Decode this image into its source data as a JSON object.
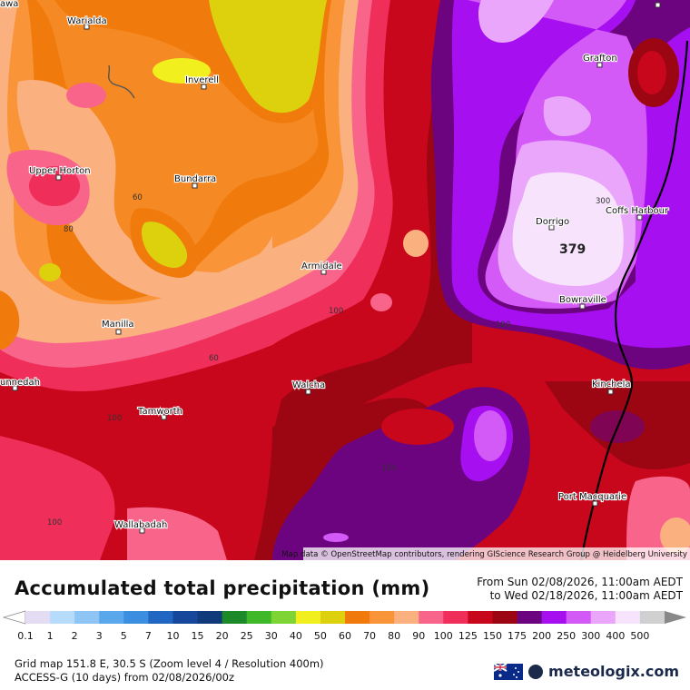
{
  "map": {
    "attribution": "Map data © OpenStreetMap contributors, rendering GIScience Research Group @ Heidelberg University",
    "towns": [
      {
        "name": "Warialda"
      },
      {
        "name": "Inverell"
      },
      {
        "name": "Upper Horton"
      },
      {
        "name": "Bundarra"
      },
      {
        "name": "Manilla"
      },
      {
        "name": "Armidale"
      },
      {
        "name": "Grafton"
      },
      {
        "name": "Coffs Harbour"
      },
      {
        "name": "Dorrigo"
      },
      {
        "name": "Bowraville"
      },
      {
        "name": "Kinchela"
      },
      {
        "name": "Walcha"
      },
      {
        "name": "Tamworth"
      },
      {
        "name": "unnedah"
      },
      {
        "name": "Wallabadah"
      },
      {
        "name": "Port Macquarie"
      },
      {
        "name": "awa"
      }
    ],
    "contour_labels": [
      "60",
      "80",
      "60",
      "100",
      "100",
      "150",
      "300",
      "100",
      "100"
    ],
    "max_value_label": "379"
  },
  "footer": {
    "title": "Accumulated total precipitation (mm)",
    "from": "From Sun 02/08/2026, 11:00am AEDT",
    "to": "to Wed 02/18/2026, 11:00am AEDT",
    "grid_info": "Grid map 151.8 E, 30.5 S (Zoom level 4 / Resolution 400m)",
    "model_info": "ACCESS-G (10 days)  from  02/08/2026/00z",
    "brand": "meteologix.com"
  },
  "legend": {
    "labels": [
      "0.1",
      "1",
      "2",
      "3",
      "5",
      "7",
      "10",
      "15",
      "20",
      "25",
      "30",
      "40",
      "50",
      "60",
      "70",
      "80",
      "90",
      "100",
      "125",
      "150",
      "175",
      "200",
      "250",
      "300",
      "400",
      "500"
    ],
    "colors": [
      "#e4dcf2",
      "#b7dcfb",
      "#8fc5f4",
      "#5aa7ec",
      "#3b8ee0",
      "#2166c3",
      "#17479a",
      "#103a7a",
      "#1d8a29",
      "#3fb82a",
      "#7ed335",
      "#f1f01e",
      "#dcd10c",
      "#f07b0c",
      "#f99538",
      "#fbb07f",
      "#f9648b",
      "#ef2e5a",
      "#c8061c",
      "#9b0612",
      "#6d047f",
      "#a60ff0",
      "#d45af7",
      "#e9a6fa",
      "#f7e3fc",
      "#d0d0d0"
    ]
  }
}
